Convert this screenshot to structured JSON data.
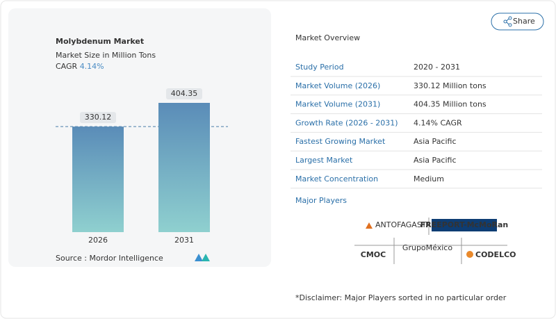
{
  "chart_data": {
    "type": "bar",
    "title": "Molybdenum Market",
    "subtitle": "Market Size in Million Tons",
    "cagr_label": "CAGR",
    "cagr_value": "4.14%",
    "categories": [
      "2026",
      "2031"
    ],
    "values": [
      330.12,
      404.35
    ],
    "colors": [
      "#5a8cb8",
      "#8fd0cf"
    ],
    "source": "Source :  Mordor Intelligence"
  },
  "share": "Share",
  "overview": {
    "title": "Market Overview",
    "rows": [
      [
        "Study Period",
        "2020 - 2031"
      ],
      [
        "Market Volume (2026)",
        "330.12 Million tons"
      ],
      [
        "Market Volume (2031)",
        "404.35 Million tons"
      ],
      [
        "Growth Rate (2026 - 2031)",
        "4.14% CAGR"
      ],
      [
        "Fastest Growing Market",
        "Asia Pacific"
      ],
      [
        "Largest Market",
        "Asia Pacific"
      ],
      [
        "Market Concentration",
        "Medium"
      ]
    ],
    "players_title": "Major Players",
    "players": [
      "ANTOFAGASTA PLC",
      "FREEPORT-McMoRan",
      "CMOC",
      "GrupoMéxico",
      "CODELCO"
    ],
    "disclaimer": "*Disclaimer: Major Players sorted in no particular order"
  }
}
